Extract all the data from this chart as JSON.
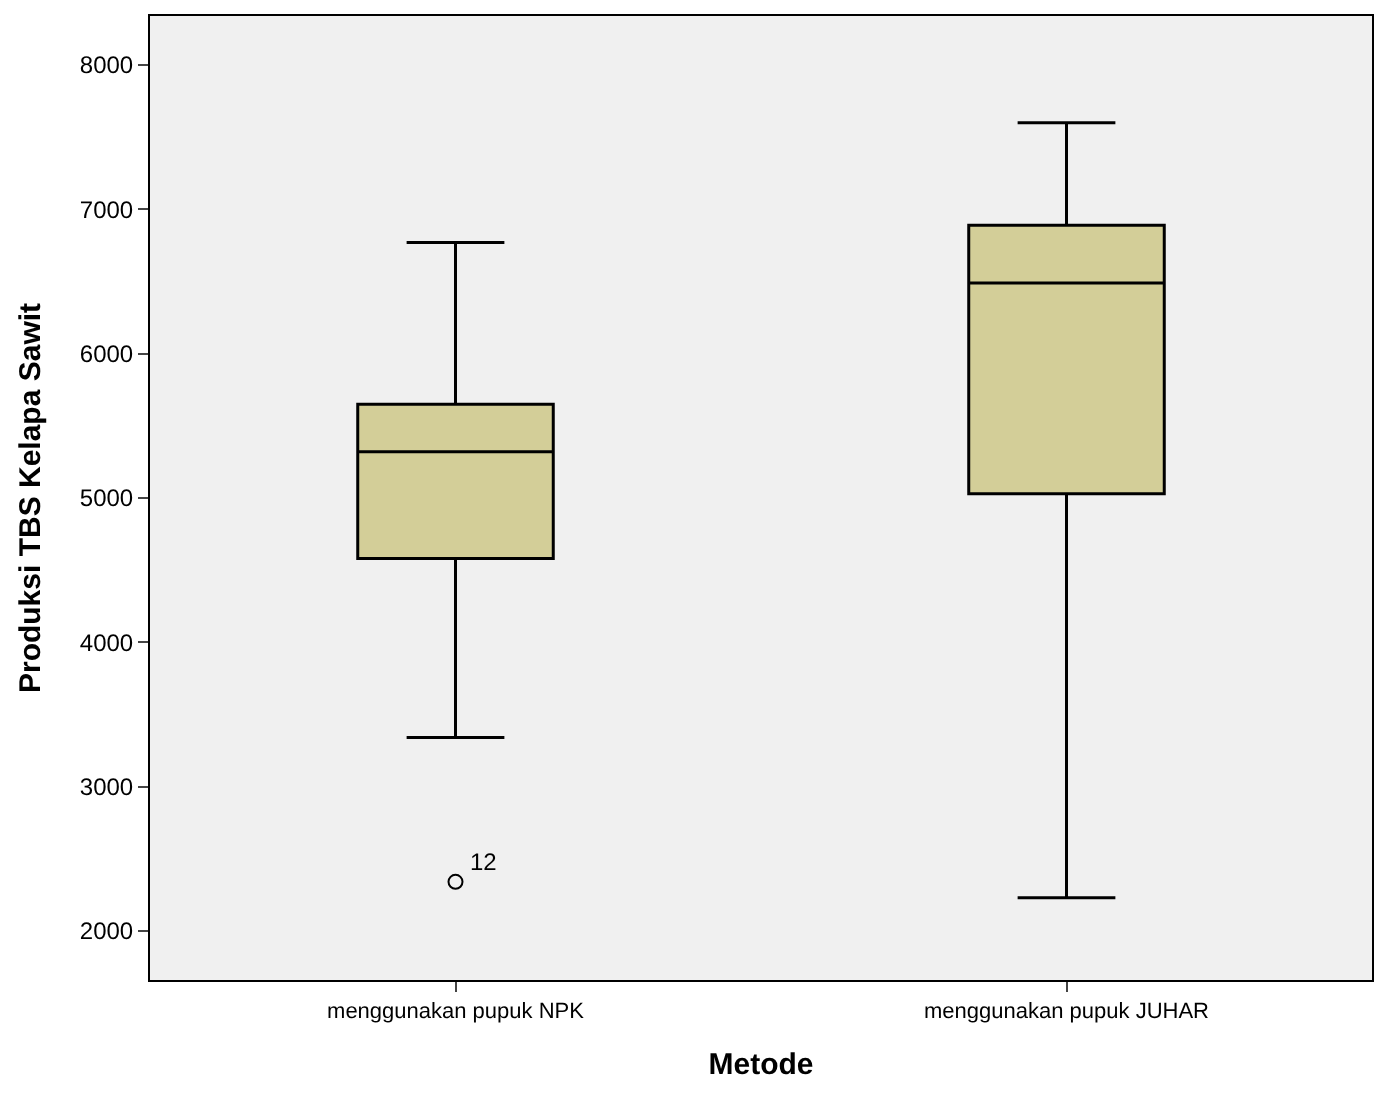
{
  "chart_data": {
    "type": "box",
    "xlabel": "Metode",
    "ylabel": "Produksi TBS Kelapa Sawit",
    "categories": [
      "menggunakan pupuk NPK",
      "menggunakan pupuk JUHAR"
    ],
    "boxes": [
      {
        "low": 3340,
        "q1": 4580,
        "median": 5320,
        "q3": 5650,
        "high": 6770,
        "outliers": [
          2340
        ]
      },
      {
        "low": 2230,
        "q1": 5030,
        "median": 6490,
        "q3": 6890,
        "high": 7600
      }
    ],
    "color": "#d3ce98",
    "annotations": [
      "12"
    ],
    "ylim": [
      1660,
      8340
    ],
    "yticks": [
      2000,
      3000,
      4000,
      5000,
      6000,
      7000,
      8000
    ],
    "grid": false
  }
}
